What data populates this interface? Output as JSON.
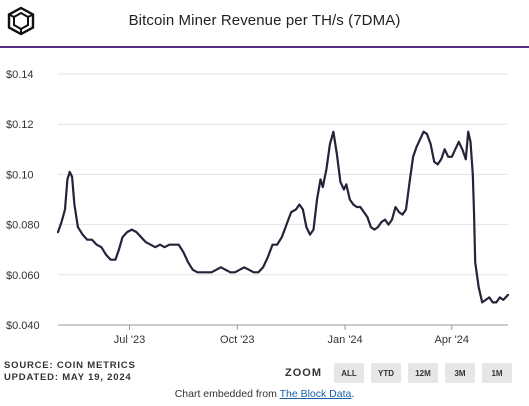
{
  "header": {
    "title": "Bitcoin Miner Revenue per TH/s (7DMA)",
    "logo_icon": "the-block-cube-icon"
  },
  "footer": {
    "source": "SOURCE: COIN METRICS",
    "updated": "UPDATED: MAY 19, 2024"
  },
  "zoom": {
    "label": "ZOOM",
    "options": [
      "ALL",
      "YTD",
      "12M",
      "3M",
      "1M"
    ]
  },
  "embed": {
    "prefix": "Chart embedded from ",
    "link": "The Block Data",
    "suffix": "."
  },
  "colors": {
    "line": "#23233a",
    "accent": "#5a2d82",
    "grid": "#e3e3e3"
  },
  "chart_data": {
    "type": "line",
    "title": "Bitcoin Miner Revenue per TH/s (7DMA)",
    "xlabel": "",
    "ylabel": "",
    "x_ticks": [
      "Jul '23",
      "Oct '23",
      "Jan '24",
      "Apr '24"
    ],
    "x_tick_dates": [
      "2023-07-01",
      "2023-10-01",
      "2024-01-01",
      "2024-04-01"
    ],
    "x_range": [
      "2023-05-01",
      "2024-05-19"
    ],
    "y_ticks": [
      "$0.040",
      "$0.060",
      "$0.080",
      "$0.10",
      "$0.12",
      "$0.14"
    ],
    "y_tick_values": [
      0.04,
      0.06,
      0.08,
      0.1,
      0.12,
      0.14
    ],
    "ylim": [
      0.04,
      0.14
    ],
    "grid": true,
    "series": [
      {
        "points": [
          [
            "2023-05-01",
            0.077
          ],
          [
            "2023-05-04",
            0.081
          ],
          [
            "2023-05-07",
            0.086
          ],
          [
            "2023-05-09",
            0.098
          ],
          [
            "2023-05-11",
            0.101
          ],
          [
            "2023-05-13",
            0.099
          ],
          [
            "2023-05-15",
            0.088
          ],
          [
            "2023-05-18",
            0.079
          ],
          [
            "2023-05-22",
            0.076
          ],
          [
            "2023-05-26",
            0.074
          ],
          [
            "2023-05-30",
            0.074
          ],
          [
            "2023-06-03",
            0.072
          ],
          [
            "2023-06-07",
            0.071
          ],
          [
            "2023-06-11",
            0.068
          ],
          [
            "2023-06-15",
            0.066
          ],
          [
            "2023-06-19",
            0.066
          ],
          [
            "2023-06-22",
            0.07
          ],
          [
            "2023-06-25",
            0.075
          ],
          [
            "2023-06-29",
            0.077
          ],
          [
            "2023-07-03",
            0.078
          ],
          [
            "2023-07-07",
            0.077
          ],
          [
            "2023-07-11",
            0.075
          ],
          [
            "2023-07-15",
            0.073
          ],
          [
            "2023-07-19",
            0.072
          ],
          [
            "2023-07-23",
            0.071
          ],
          [
            "2023-07-27",
            0.072
          ],
          [
            "2023-07-31",
            0.071
          ],
          [
            "2023-08-04",
            0.072
          ],
          [
            "2023-08-08",
            0.072
          ],
          [
            "2023-08-12",
            0.072
          ],
          [
            "2023-08-16",
            0.069
          ],
          [
            "2023-08-20",
            0.065
          ],
          [
            "2023-08-24",
            0.062
          ],
          [
            "2023-08-28",
            0.061
          ],
          [
            "2023-09-01",
            0.061
          ],
          [
            "2023-09-05",
            0.061
          ],
          [
            "2023-09-09",
            0.061
          ],
          [
            "2023-09-13",
            0.062
          ],
          [
            "2023-09-17",
            0.063
          ],
          [
            "2023-09-21",
            0.062
          ],
          [
            "2023-09-25",
            0.061
          ],
          [
            "2023-09-29",
            0.061
          ],
          [
            "2023-10-03",
            0.062
          ],
          [
            "2023-10-07",
            0.063
          ],
          [
            "2023-10-11",
            0.062
          ],
          [
            "2023-10-15",
            0.061
          ],
          [
            "2023-10-19",
            0.061
          ],
          [
            "2023-10-23",
            0.063
          ],
          [
            "2023-10-27",
            0.067
          ],
          [
            "2023-10-31",
            0.072
          ],
          [
            "2023-11-04",
            0.072
          ],
          [
            "2023-11-08",
            0.075
          ],
          [
            "2023-11-12",
            0.08
          ],
          [
            "2023-11-16",
            0.085
          ],
          [
            "2023-11-20",
            0.086
          ],
          [
            "2023-11-23",
            0.088
          ],
          [
            "2023-11-26",
            0.086
          ],
          [
            "2023-11-29",
            0.079
          ],
          [
            "2023-12-02",
            0.076
          ],
          [
            "2023-12-05",
            0.078
          ],
          [
            "2023-12-08",
            0.09
          ],
          [
            "2023-12-11",
            0.098
          ],
          [
            "2023-12-13",
            0.095
          ],
          [
            "2023-12-16",
            0.102
          ],
          [
            "2023-12-19",
            0.112
          ],
          [
            "2023-12-22",
            0.117
          ],
          [
            "2023-12-25",
            0.108
          ],
          [
            "2023-12-28",
            0.097
          ],
          [
            "2023-12-31",
            0.094
          ],
          [
            "2024-01-02",
            0.096
          ],
          [
            "2024-01-05",
            0.09
          ],
          [
            "2024-01-08",
            0.088
          ],
          [
            "2024-01-11",
            0.087
          ],
          [
            "2024-01-14",
            0.087
          ],
          [
            "2024-01-17",
            0.085
          ],
          [
            "2024-01-20",
            0.083
          ],
          [
            "2024-01-23",
            0.079
          ],
          [
            "2024-01-26",
            0.078
          ],
          [
            "2024-01-29",
            0.079
          ],
          [
            "2024-02-01",
            0.081
          ],
          [
            "2024-02-04",
            0.082
          ],
          [
            "2024-02-07",
            0.08
          ],
          [
            "2024-02-10",
            0.082
          ],
          [
            "2024-02-13",
            0.087
          ],
          [
            "2024-02-16",
            0.085
          ],
          [
            "2024-02-19",
            0.084
          ],
          [
            "2024-02-22",
            0.086
          ],
          [
            "2024-02-25",
            0.097
          ],
          [
            "2024-02-28",
            0.107
          ],
          [
            "2024-03-02",
            0.111
          ],
          [
            "2024-03-05",
            0.114
          ],
          [
            "2024-03-08",
            0.117
          ],
          [
            "2024-03-11",
            0.116
          ],
          [
            "2024-03-14",
            0.112
          ],
          [
            "2024-03-17",
            0.105
          ],
          [
            "2024-03-20",
            0.104
          ],
          [
            "2024-03-23",
            0.106
          ],
          [
            "2024-03-26",
            0.11
          ],
          [
            "2024-03-29",
            0.107
          ],
          [
            "2024-04-01",
            0.107
          ],
          [
            "2024-04-04",
            0.11
          ],
          [
            "2024-04-07",
            0.113
          ],
          [
            "2024-04-10",
            0.11
          ],
          [
            "2024-04-13",
            0.106
          ],
          [
            "2024-04-15",
            0.117
          ],
          [
            "2024-04-17",
            0.113
          ],
          [
            "2024-04-19",
            0.1
          ],
          [
            "2024-04-20",
            0.085
          ],
          [
            "2024-04-21",
            0.065
          ],
          [
            "2024-04-24",
            0.055
          ],
          [
            "2024-04-27",
            0.049
          ],
          [
            "2024-04-30",
            0.05
          ],
          [
            "2024-05-03",
            0.051
          ],
          [
            "2024-05-06",
            0.049
          ],
          [
            "2024-05-09",
            0.049
          ],
          [
            "2024-05-12",
            0.051
          ],
          [
            "2024-05-15",
            0.05
          ],
          [
            "2024-05-19",
            0.052
          ]
        ]
      }
    ]
  }
}
